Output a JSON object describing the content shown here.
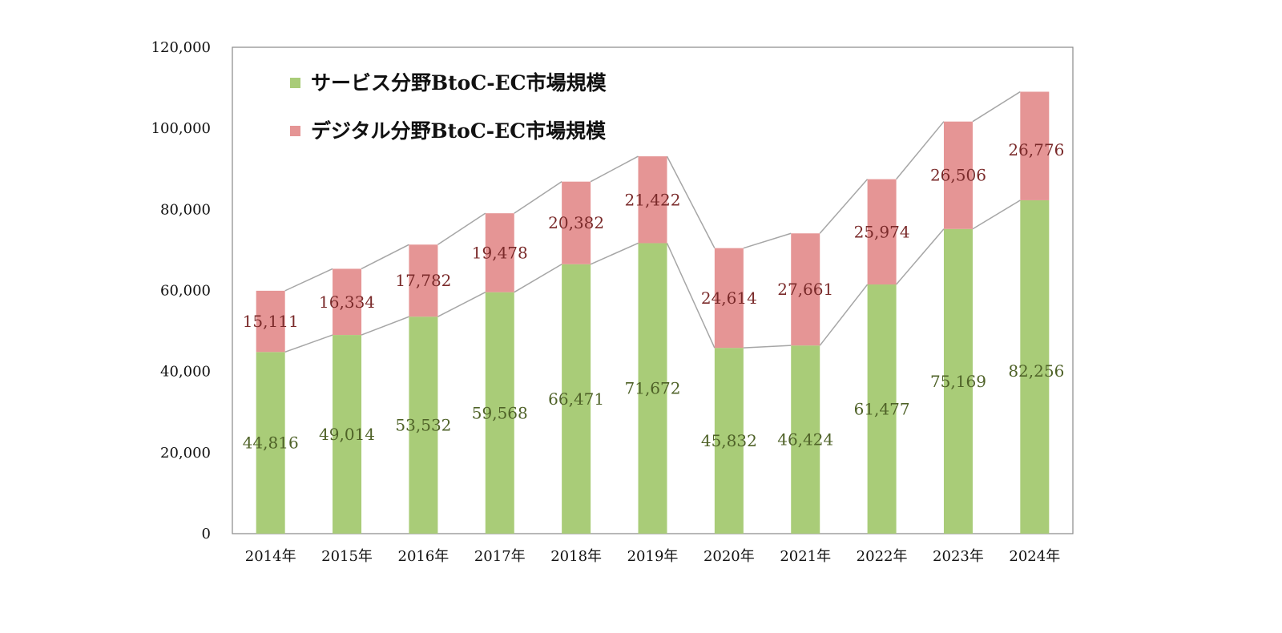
{
  "chart_data": {
    "type": "bar",
    "stacked": true,
    "categories": [
      "2014年",
      "2015年",
      "2016年",
      "2017年",
      "2018年",
      "2019年",
      "2020年",
      "2021年",
      "2022年",
      "2023年",
      "2024年"
    ],
    "series": [
      {
        "name": "サービス分野BtoC-EC市場規模",
        "color": "#a9cc78",
        "label_color": "#4f6228",
        "values": [
          44816,
          49014,
          53532,
          59568,
          66471,
          71672,
          45832,
          46424,
          61477,
          75169,
          82256
        ],
        "labels": [
          "44,816",
          "49,014",
          "53,532",
          "59,568",
          "66,471",
          "71,672",
          "45,832",
          "46,424",
          "61,477",
          "75,169",
          "82,256"
        ]
      },
      {
        "name": "デジタル分野BtoC-EC市場規模",
        "color": "#e59595",
        "label_color": "#7a2a2a",
        "values": [
          15111,
          16334,
          17782,
          19478,
          20382,
          21422,
          24614,
          27661,
          25974,
          26506,
          26776
        ],
        "labels": [
          "15,111",
          "16,334",
          "17,782",
          "19,478",
          "20,382",
          "21,422",
          "24,614",
          "27,661",
          "25,974",
          "26,506",
          "26,776"
        ]
      }
    ],
    "ylim": [
      0,
      120000
    ],
    "yticks": [
      0,
      20000,
      40000,
      60000,
      80000,
      100000,
      120000
    ],
    "ytick_labels": [
      "0",
      "20,000",
      "40,000",
      "60,000",
      "80,000",
      "100,000",
      "120,000"
    ],
    "legend_position": "top-left",
    "series_lines": true,
    "grid": false
  }
}
